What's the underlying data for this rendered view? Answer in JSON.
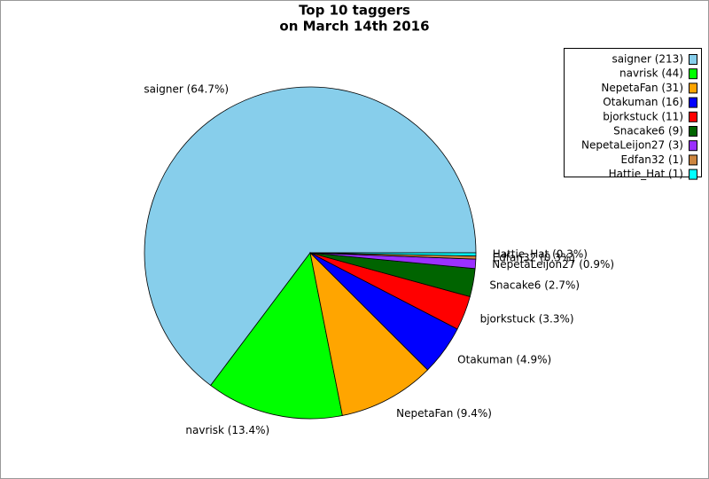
{
  "chart_data": {
    "type": "pie",
    "title": "Top 10 taggers",
    "subtitle": "on March 14th 2016",
    "categories": [
      "saigner",
      "navrisk",
      "NepetaFan",
      "Otakuman",
      "bjorkstuck",
      "Snacake6",
      "NepetaLeijon27",
      "Edfan32",
      "Hattie_Hat"
    ],
    "values": [
      213,
      44,
      31,
      16,
      11,
      9,
      3,
      1,
      1
    ],
    "legend_labels": [
      "saigner (213)",
      "navrisk (44)",
      "NepetaFan (31)",
      "Otakuman (16)",
      "bjorkstuck (11)",
      "Snacake6 (9)",
      "NepetaLeijon27 (3)",
      "Edfan32 (1)",
      "Hattie_Hat (1)"
    ],
    "slice_labels": [
      "saigner (64.7%)",
      "navrisk (13.4%)",
      "NepetaFan (9.4%)",
      "Otakuman (4.9%)",
      "bjorkstuck (3.3%)",
      "Snacake6 (2.7%)",
      "NepetaLeijon27 (0.9%)",
      "Edfan32 (0.3%)",
      "Hattie_Hat (0.3%)"
    ],
    "colors": [
      "#87ceeb",
      "#00ff00",
      "#ffa500",
      "#0000ff",
      "#ff0000",
      "#006400",
      "#9b30ff",
      "#cd853f",
      "#00ffff"
    ],
    "legend": "upper right"
  }
}
